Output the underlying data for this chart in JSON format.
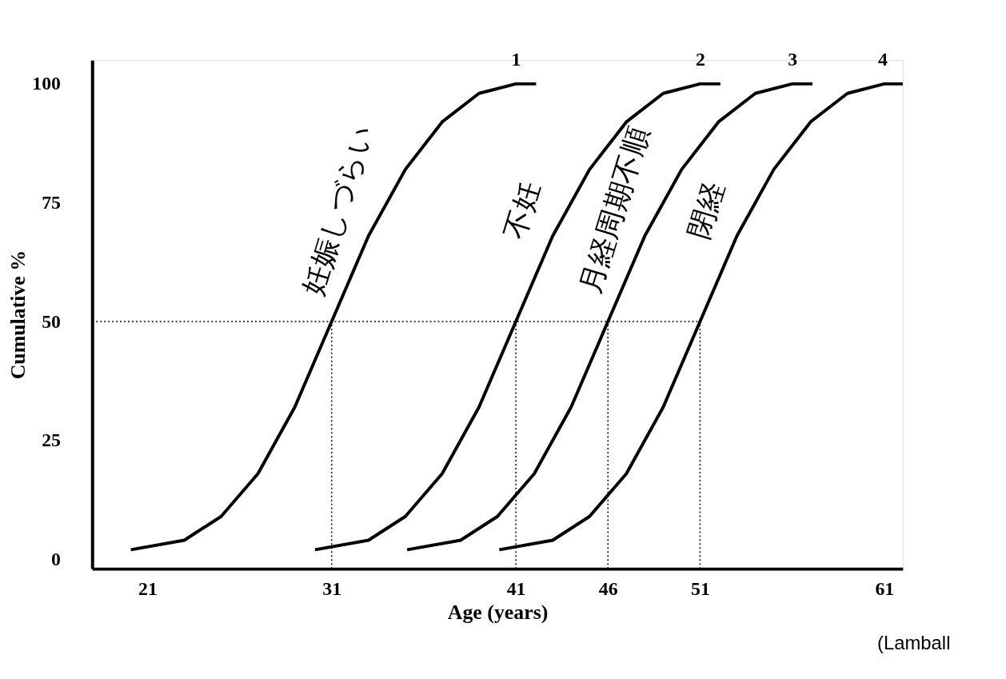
{
  "chart_data": {
    "type": "line",
    "xlabel": "Age (years)",
    "ylabel": "Cumulative %",
    "xlim": [
      18,
      62
    ],
    "ylim": [
      -2,
      105
    ],
    "xticks": [
      21,
      31,
      41,
      46,
      51,
      61
    ],
    "yticks": [
      0,
      25,
      50,
      75,
      100
    ],
    "grid": false,
    "legend": false,
    "marker": "none",
    "line_style": "solid",
    "series": [
      {
        "name": "1",
        "color": "#000000",
        "x": [
          20.1,
          23,
          25,
          27,
          29,
          31,
          33,
          35,
          37,
          39,
          41,
          42.1
        ],
        "values": [
          2,
          4,
          9,
          18,
          32,
          50,
          68,
          82,
          92,
          98,
          100,
          100
        ]
      },
      {
        "name": "2",
        "color": "#000000",
        "x": [
          30.1,
          33,
          35,
          37,
          39,
          41,
          43,
          45,
          47,
          49,
          51,
          52.1
        ],
        "values": [
          2,
          4,
          9,
          18,
          32,
          50,
          68,
          82,
          92,
          98,
          100,
          100
        ]
      },
      {
        "name": "3",
        "color": "#000000",
        "x": [
          35.1,
          38,
          40,
          42,
          44,
          46,
          48,
          50,
          52,
          54,
          56,
          57.1
        ],
        "values": [
          2,
          4,
          9,
          18,
          32,
          50,
          68,
          82,
          92,
          98,
          100,
          100
        ]
      },
      {
        "name": "4",
        "color": "#000000",
        "x": [
          40.1,
          43,
          45,
          47,
          49,
          51,
          53,
          55,
          57,
          59,
          61,
          62
        ],
        "values": [
          2,
          4,
          9,
          18,
          32,
          50,
          68,
          82,
          92,
          98,
          100,
          100
        ]
      }
    ],
    "ref_lines": [
      {
        "axis": "y",
        "value": 50,
        "line_style": "dotted",
        "color": "#000000"
      },
      {
        "axis": "x",
        "value": 31,
        "line_style": "dotted",
        "color": "#000000"
      },
      {
        "axis": "x",
        "value": 41,
        "line_style": "dotted",
        "color": "#000000"
      },
      {
        "axis": "x",
        "value": 46,
        "line_style": "dotted",
        "color": "#000000"
      },
      {
        "axis": "x",
        "value": 51,
        "line_style": "dotted",
        "color": "#000000"
      }
    ],
    "annotations": [
      "妊娠しづらい",
      "不妊",
      "月経周期不順",
      "閉経",
      "(Lamball"
    ]
  }
}
